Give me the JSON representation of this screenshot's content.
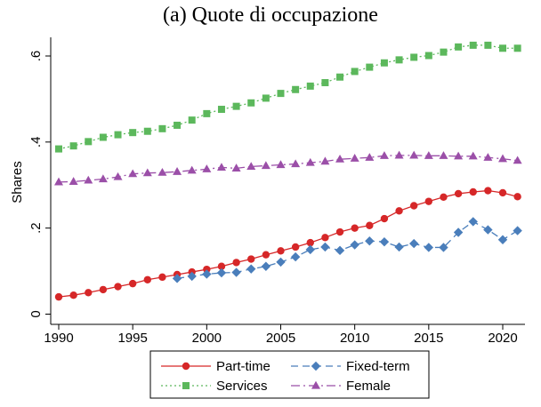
{
  "chart_data": {
    "type": "line",
    "title": "(a) Quote di occupazione",
    "ylabel": "Shares",
    "xlabel": "",
    "xlim": [
      1989.6,
      2021.6
    ],
    "ylim": [
      0,
      0.6
    ],
    "x_ticks": [
      1990,
      1995,
      2000,
      2005,
      2010,
      2015,
      2020
    ],
    "x_tick_labels": [
      "1990",
      "1995",
      "2000",
      "2005",
      "2010",
      "2015",
      "2020"
    ],
    "y_ticks": [
      0,
      0.2,
      0.4,
      0.6
    ],
    "y_tick_labels": [
      "0",
      ".2",
      ".4",
      ".6"
    ],
    "grid": false,
    "legend_position": "bottom",
    "series": [
      {
        "name": "Part-time",
        "color": "#d62728",
        "marker": "circle",
        "line_style": "solid",
        "x": [
          1990,
          1991,
          1992,
          1993,
          1994,
          1995,
          1996,
          1997,
          1998,
          1999,
          2000,
          2001,
          2002,
          2003,
          2004,
          2005,
          2006,
          2007,
          2008,
          2009,
          2010,
          2011,
          2012,
          2013,
          2014,
          2015,
          2016,
          2017,
          2018,
          2019,
          2020,
          2021
        ],
        "values": [
          0.04,
          0.044,
          0.05,
          0.057,
          0.064,
          0.071,
          0.08,
          0.086,
          0.092,
          0.098,
          0.104,
          0.111,
          0.12,
          0.128,
          0.138,
          0.147,
          0.156,
          0.166,
          0.178,
          0.191,
          0.2,
          0.206,
          0.222,
          0.24,
          0.252,
          0.262,
          0.272,
          0.28,
          0.284,
          0.287,
          0.282,
          0.273
        ]
      },
      {
        "name": "Fixed-term",
        "color": "#4a7ebb",
        "marker": "diamond",
        "line_style": "dash",
        "x": [
          1998,
          1999,
          2000,
          2001,
          2002,
          2003,
          2004,
          2005,
          2006,
          2007,
          2008,
          2009,
          2010,
          2011,
          2012,
          2013,
          2014,
          2015,
          2016,
          2017,
          2018,
          2019,
          2020,
          2021
        ],
        "values": [
          0.083,
          0.088,
          0.093,
          0.096,
          0.097,
          0.105,
          0.111,
          0.121,
          0.133,
          0.15,
          0.156,
          0.148,
          0.161,
          0.17,
          0.168,
          0.156,
          0.164,
          0.155,
          0.155,
          0.19,
          0.215,
          0.196,
          0.173,
          0.194
        ]
      },
      {
        "name": "Services",
        "color": "#5cb85c",
        "marker": "square",
        "line_style": "dot",
        "x": [
          1990,
          1991,
          1992,
          1993,
          1994,
          1995,
          1996,
          1997,
          1998,
          1999,
          2000,
          2001,
          2002,
          2003,
          2004,
          2005,
          2006,
          2007,
          2008,
          2009,
          2010,
          2011,
          2012,
          2013,
          2014,
          2015,
          2016,
          2017,
          2018,
          2019,
          2020,
          2021
        ],
        "values": [
          0.384,
          0.391,
          0.401,
          0.411,
          0.417,
          0.422,
          0.425,
          0.431,
          0.439,
          0.451,
          0.466,
          0.476,
          0.483,
          0.491,
          0.502,
          0.513,
          0.522,
          0.53,
          0.538,
          0.551,
          0.564,
          0.574,
          0.584,
          0.591,
          0.597,
          0.601,
          0.609,
          0.621,
          0.625,
          0.625,
          0.618,
          0.618
        ]
      },
      {
        "name": "Female",
        "color": "#9b4fa8",
        "marker": "triangle",
        "line_style": "dashdot",
        "x": [
          1990,
          1991,
          1992,
          1993,
          1994,
          1995,
          1996,
          1997,
          1998,
          1999,
          2000,
          2001,
          2002,
          2003,
          2004,
          2005,
          2006,
          2007,
          2008,
          2009,
          2010,
          2011,
          2012,
          2013,
          2014,
          2015,
          2016,
          2017,
          2018,
          2019,
          2020,
          2021
        ],
        "values": [
          0.307,
          0.308,
          0.311,
          0.314,
          0.319,
          0.326,
          0.328,
          0.329,
          0.331,
          0.334,
          0.337,
          0.341,
          0.339,
          0.343,
          0.345,
          0.347,
          0.349,
          0.352,
          0.355,
          0.36,
          0.362,
          0.364,
          0.368,
          0.369,
          0.369,
          0.368,
          0.368,
          0.367,
          0.367,
          0.364,
          0.361,
          0.357
        ]
      }
    ],
    "legend_order": [
      "Part-time",
      "Fixed-term",
      "Services",
      "Female"
    ]
  }
}
